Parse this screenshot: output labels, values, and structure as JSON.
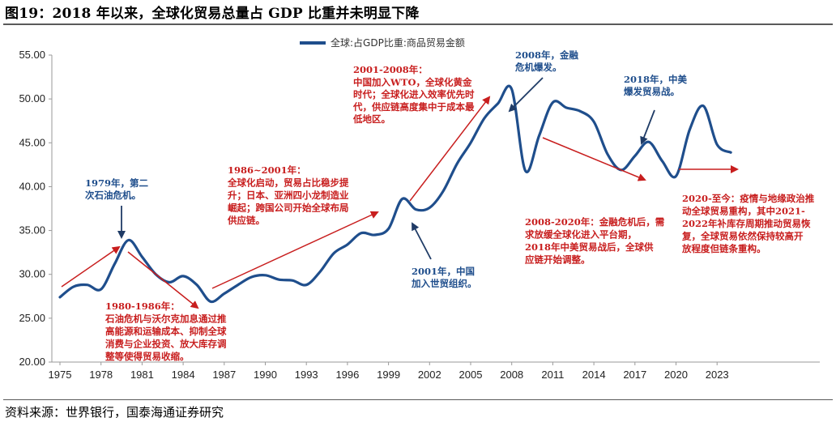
{
  "title": "图19：2018 年以来，全球化贸易总量占 GDP 比重并未明显下降",
  "source": "资料来源：世界银行，国泰海通证券研究",
  "colors": {
    "series": "#1f4e8c",
    "red": "#c81e1e",
    "blue_text": "#1f4e8c",
    "red_text": "#c81e1e",
    "grid": "#d9d9d9"
  },
  "chart_data": {
    "type": "line",
    "xlim": [
      1975,
      2025
    ],
    "ylim": [
      20,
      55
    ],
    "xticks": [
      "1975",
      "1978",
      "1981",
      "1984",
      "1987",
      "1990",
      "1993",
      "1996",
      "1999",
      "2002",
      "2005",
      "2008",
      "2011",
      "2014",
      "2017",
      "2020",
      "2023"
    ],
    "yticks": [
      "20.00",
      "25.00",
      "30.00",
      "35.00",
      "40.00",
      "45.00",
      "50.00",
      "55.00"
    ],
    "legend_position": "top-center",
    "series": [
      {
        "name": "全球:占GDP比重:商品贸易金额",
        "x": [
          1975,
          1976,
          1977,
          1978,
          1979,
          1980,
          1981,
          1982,
          1983,
          1984,
          1985,
          1986,
          1987,
          1988,
          1989,
          1990,
          1991,
          1992,
          1993,
          1994,
          1995,
          1996,
          1997,
          1998,
          1999,
          2000,
          2001,
          2002,
          2003,
          2004,
          2005,
          2006,
          2007,
          2008,
          2009,
          2010,
          2011,
          2012,
          2013,
          2014,
          2015,
          2016,
          2017,
          2018,
          2019,
          2020,
          2021,
          2022,
          2023,
          2024
        ],
        "y": [
          27.4,
          28.6,
          28.8,
          28.3,
          31.2,
          33.9,
          32.0,
          30.0,
          29.1,
          29.8,
          28.8,
          26.9,
          27.8,
          28.8,
          29.7,
          29.9,
          29.4,
          29.3,
          28.8,
          30.3,
          32.4,
          33.4,
          34.7,
          34.5,
          35.2,
          38.6,
          37.4,
          37.6,
          39.5,
          42.6,
          45.0,
          47.8,
          49.5,
          51.1,
          41.8,
          45.8,
          49.6,
          49.0,
          48.6,
          47.4,
          43.7,
          41.9,
          43.5,
          45.1,
          42.9,
          41.2,
          46.5,
          49.2,
          44.8,
          43.9
        ]
      }
    ],
    "annotations": [
      {
        "color": "blue",
        "lines": [
          "1979年，第二",
          "次石油危机。"
        ]
      },
      {
        "color": "red",
        "lines": [
          "1980-1986年：",
          "石油危机与沃尔克加息通过推",
          "高能源和运输成本、抑制全球",
          "消费与企业投资、放大库存调",
          "整等使得贸易收缩。"
        ]
      },
      {
        "color": "red",
        "lines": [
          "1986~2001年：",
          "全球化启动，贸易占比稳步提",
          "升；日本、亚洲四小龙制造业",
          "崛起；跨国公司开始全球布局",
          "供应链。"
        ]
      },
      {
        "color": "red",
        "lines": [
          "2001-2008年：",
          "中国加入WTO，全球化黄金",
          "时代；全球化进入效率优先时",
          "代，供应链高度集中于成本最",
          "低地区。"
        ]
      },
      {
        "color": "blue",
        "lines": [
          "2001年，中国",
          "加入世贸组织。"
        ]
      },
      {
        "color": "blue",
        "lines": [
          "2008年，金融",
          "危机爆发。"
        ]
      },
      {
        "color": "red",
        "lines": [
          "2008-2020年：金融危机后，需",
          "求放缓全球化进入平台期，",
          "2018年中美贸易战后，全球供",
          "应链开始调整。"
        ]
      },
      {
        "color": "blue",
        "lines": [
          "2018年，中美",
          "爆发贸易战。"
        ]
      },
      {
        "color": "red",
        "lines": [
          "2020-至今：疫情与地缘政治推",
          "动全球贸易重构，其中2021-",
          "2022年补库存周期推动贸易恢",
          "复，全球贸易依然保持较高开",
          "放程度但链条重构。"
        ]
      }
    ]
  }
}
